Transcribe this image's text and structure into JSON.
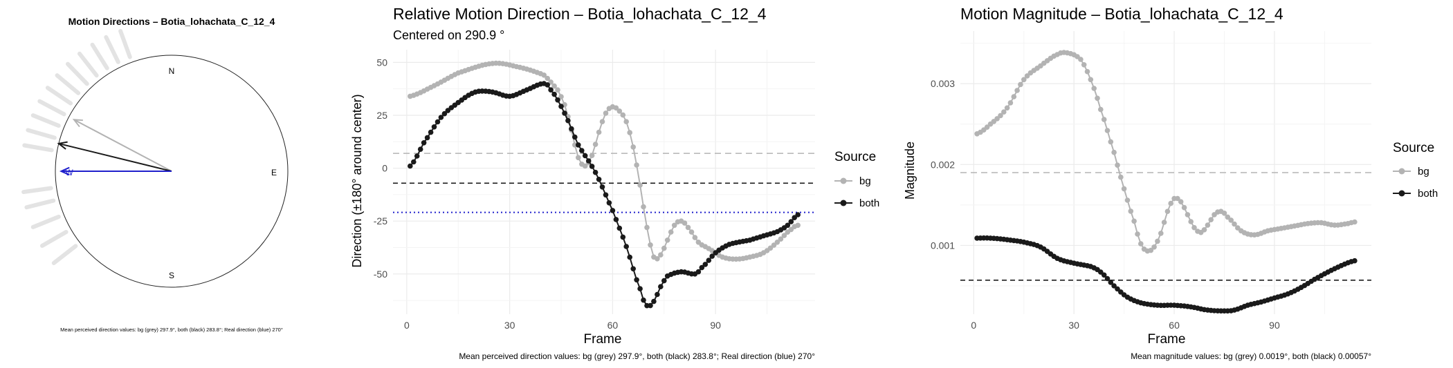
{
  "compass": {
    "title": "Motion Directions – Botia_lohachata_C_12_4",
    "n": "N",
    "e": "E",
    "s": "S",
    "w": "W",
    "caption": "Mean perceived direction values: bg (grey) 297.9°, both (black) 283.8°; Real direction (blue) 270°"
  },
  "legend_title": "Source",
  "colors": {
    "bg": "#b3b3b3",
    "both": "#1a1a1a",
    "real": "#1f1fcc"
  },
  "chart_data": [
    {
      "type": "scatter",
      "title": "Motion Directions – Botia_lohachata_C_12_4",
      "mean_directions_deg": {
        "bg": 297.9,
        "both": 283.8,
        "real": 270
      },
      "arrow_length_fraction": {
        "bg": 0.95,
        "both": 1.0,
        "real": 0.95
      },
      "rays_deg": [
        280,
        286,
        292,
        298,
        304,
        310,
        316,
        322,
        328,
        334,
        340,
        248,
        256,
        262,
        240,
        232
      ]
    },
    {
      "type": "line",
      "title": "Relative Motion Direction – Botia_lohachata_C_12_4",
      "subtitle": "Centered on  290.9 °",
      "xlabel": "Frame",
      "ylabel": "Direction (±180° around center)",
      "xlim": [
        -4,
        119
      ],
      "ylim": [
        -69,
        56
      ],
      "xticks": [
        "0",
        "30",
        "60",
        "90"
      ],
      "yticks": [
        "50",
        "25",
        "0",
        "-25",
        "-50"
      ],
      "legend": [
        "bg",
        "both"
      ],
      "hlines": {
        "bg": 7.0,
        "both": -7.1,
        "real": -20.9
      },
      "series": [
        {
          "name": "bg",
          "knots": [
            [
              1,
              34
            ],
            [
              8,
              39
            ],
            [
              15,
              45
            ],
            [
              25,
              49.5
            ],
            [
              32,
              48
            ],
            [
              40,
              44
            ],
            [
              44,
              37
            ],
            [
              46,
              30
            ],
            [
              48,
              18
            ],
            [
              50,
              5
            ],
            [
              52,
              1
            ],
            [
              54,
              6
            ],
            [
              56,
              17
            ],
            [
              58,
              26
            ],
            [
              60,
              29
            ],
            [
              62,
              27
            ],
            [
              64,
              22
            ],
            [
              66,
              10
            ],
            [
              68,
              -8
            ],
            [
              70,
              -28
            ],
            [
              72,
              -42
            ],
            [
              74,
              -41
            ],
            [
              76,
              -34
            ],
            [
              78,
              -27
            ],
            [
              80,
              -25
            ],
            [
              82,
              -28
            ],
            [
              85,
              -35
            ],
            [
              88,
              -38
            ],
            [
              92,
              -42
            ],
            [
              96,
              -43
            ],
            [
              100,
              -42
            ],
            [
              104,
              -40
            ],
            [
              108,
              -35
            ],
            [
              112,
              -29
            ],
            [
              114,
              -27
            ]
          ]
        },
        {
          "name": "both",
          "knots": [
            [
              1,
              1
            ],
            [
              5,
              12
            ],
            [
              10,
              24
            ],
            [
              15,
              31
            ],
            [
              20,
              36
            ],
            [
              25,
              36
            ],
            [
              30,
              34
            ],
            [
              35,
              37
            ],
            [
              40,
              40
            ],
            [
              42,
              37
            ],
            [
              46,
              26
            ],
            [
              50,
              11
            ],
            [
              55,
              -2
            ],
            [
              60,
              -20
            ],
            [
              64,
              -37
            ],
            [
              68,
              -57
            ],
            [
              70,
              -65
            ],
            [
              72,
              -63
            ],
            [
              74,
              -56
            ],
            [
              76,
              -51
            ],
            [
              80,
              -49
            ],
            [
              84,
              -50
            ],
            [
              86,
              -47
            ],
            [
              90,
              -40
            ],
            [
              94,
              -36
            ],
            [
              100,
              -34
            ],
            [
              104,
              -32
            ],
            [
              108,
              -30
            ],
            [
              111,
              -27
            ],
            [
              114,
              -22
            ]
          ]
        }
      ]
    },
    {
      "type": "line",
      "title": "Motion Magnitude – Botia_lohachata_C_12_4",
      "xlabel": "Frame",
      "ylabel": "Magnitude",
      "xlim": [
        -4,
        119
      ],
      "ylim": [
        0.00015,
        0.00365
      ],
      "xticks": [
        "0",
        "30",
        "60",
        "90"
      ],
      "yticks": [
        "0.003",
        "0.002",
        "0.001"
      ],
      "legend": [
        "bg",
        "both"
      ],
      "hlines": {
        "bg": 0.0019,
        "both": 0.00057
      },
      "series": [
        {
          "name": "bg",
          "knots": [
            [
              1,
              0.00238
            ],
            [
              5,
              0.0025
            ],
            [
              10,
              0.0027
            ],
            [
              15,
              0.00305
            ],
            [
              20,
              0.00322
            ],
            [
              25,
              0.00336
            ],
            [
              28,
              0.00338
            ],
            [
              32,
              0.0033
            ],
            [
              35,
              0.00305
            ],
            [
              38,
              0.00268
            ],
            [
              42,
              0.00215
            ],
            [
              45,
              0.0017
            ],
            [
              48,
              0.0013
            ],
            [
              50,
              0.00102
            ],
            [
              52,
              0.00093
            ],
            [
              54,
              0.00098
            ],
            [
              56,
              0.00115
            ],
            [
              58,
              0.00142
            ],
            [
              60,
              0.00158
            ],
            [
              62,
              0.00154
            ],
            [
              64,
              0.00138
            ],
            [
              66,
              0.00122
            ],
            [
              68,
              0.00116
            ],
            [
              70,
              0.00125
            ],
            [
              72,
              0.00138
            ],
            [
              74,
              0.00142
            ],
            [
              76,
              0.00135
            ],
            [
              80,
              0.00118
            ],
            [
              84,
              0.00113
            ],
            [
              88,
              0.00118
            ],
            [
              92,
              0.00121
            ],
            [
              96,
              0.00124
            ],
            [
              100,
              0.00127
            ],
            [
              104,
              0.00128
            ],
            [
              108,
              0.00125
            ],
            [
              112,
              0.00127
            ],
            [
              114,
              0.00129
            ]
          ]
        },
        {
          "name": "both",
          "knots": [
            [
              1,
              0.00109
            ],
            [
              5,
              0.00109
            ],
            [
              10,
              0.00107
            ],
            [
              15,
              0.00104
            ],
            [
              20,
              0.00098
            ],
            [
              25,
              0.00084
            ],
            [
              30,
              0.00078
            ],
            [
              35,
              0.00074
            ],
            [
              38,
              0.00067
            ],
            [
              42,
              0.0005
            ],
            [
              46,
              0.00036
            ],
            [
              50,
              0.00029
            ],
            [
              55,
              0.00026
            ],
            [
              60,
              0.00026
            ],
            [
              65,
              0.00024
            ],
            [
              70,
              0.0002
            ],
            [
              75,
              0.00019
            ],
            [
              78,
              0.0002
            ],
            [
              82,
              0.00026
            ],
            [
              86,
              0.0003
            ],
            [
              90,
              0.00035
            ],
            [
              94,
              0.0004
            ],
            [
              98,
              0.00048
            ],
            [
              102,
              0.00058
            ],
            [
              106,
              0.00067
            ],
            [
              110,
              0.00075
            ],
            [
              114,
              0.00081
            ]
          ]
        }
      ]
    }
  ],
  "panel2": {
    "caption": "Mean perceived direction values: bg (grey) 297.9°, both (black) 283.8°; Real direction (blue) 270°"
  },
  "panel3": {
    "caption": "Mean magnitude values: bg (grey) 0.0019°, both (black) 0.00057°"
  }
}
